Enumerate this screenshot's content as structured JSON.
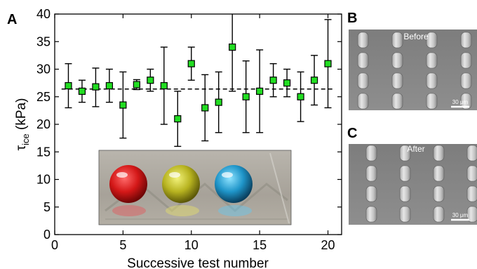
{
  "figure": {
    "panel_a_letter": "A",
    "panel_b_letter": "B",
    "panel_c_letter": "C",
    "panel_b_label": "Before",
    "panel_c_label": "After",
    "scalebar_b_label": "30 μm",
    "scalebar_c_label": "30 μm"
  },
  "chart_data": {
    "type": "scatter",
    "xlabel": "Successive test number",
    "ylabel_main": "τ",
    "ylabel_sub": "ice",
    "ylabel_unit": " (kPa)",
    "xlim": [
      0,
      21
    ],
    "ylim": [
      0,
      40
    ],
    "xticks": [
      0,
      5,
      10,
      15,
      20
    ],
    "yticks": [
      0,
      5,
      10,
      15,
      20,
      25,
      30,
      35,
      40
    ],
    "reference_line_y": 26.4,
    "marker_color": "#22dd22",
    "points": [
      {
        "x": 1,
        "y": 27.0,
        "err_low": 23.0,
        "err_high": 31.0
      },
      {
        "x": 2,
        "y": 26.0,
        "err_low": 24.0,
        "err_high": 28.0
      },
      {
        "x": 3,
        "y": 26.8,
        "err_low": 23.2,
        "err_high": 30.2
      },
      {
        "x": 4,
        "y": 27.0,
        "err_low": 24.0,
        "err_high": 30.0
      },
      {
        "x": 5,
        "y": 23.5,
        "err_low": 17.5,
        "err_high": 29.5
      },
      {
        "x": 6,
        "y": 27.2,
        "err_low": 26.3,
        "err_high": 28.1
      },
      {
        "x": 7,
        "y": 28.0,
        "err_low": 26.0,
        "err_high": 30.0
      },
      {
        "x": 8,
        "y": 27.0,
        "err_low": 20.0,
        "err_high": 34.0
      },
      {
        "x": 9,
        "y": 21.0,
        "err_low": 16.0,
        "err_high": 26.0
      },
      {
        "x": 10,
        "y": 31.0,
        "err_low": 28.0,
        "err_high": 34.0
      },
      {
        "x": 11,
        "y": 23.0,
        "err_low": 17.0,
        "err_high": 29.0
      },
      {
        "x": 12,
        "y": 24.0,
        "err_low": 18.5,
        "err_high": 29.5
      },
      {
        "x": 13,
        "y": 34.0,
        "err_low": 26.0,
        "err_high": 42.0
      },
      {
        "x": 14,
        "y": 25.0,
        "err_low": 18.5,
        "err_high": 31.5
      },
      {
        "x": 15,
        "y": 26.0,
        "err_low": 18.5,
        "err_high": 33.5
      },
      {
        "x": 16,
        "y": 28.0,
        "err_low": 25.0,
        "err_high": 31.0
      },
      {
        "x": 17,
        "y": 27.5,
        "err_low": 25.0,
        "err_high": 30.0
      },
      {
        "x": 18,
        "y": 25.0,
        "err_low": 20.5,
        "err_high": 29.5
      },
      {
        "x": 19,
        "y": 28.0,
        "err_low": 23.5,
        "err_high": 32.5
      },
      {
        "x": 20,
        "y": 31.0,
        "err_low": 23.0,
        "err_high": 39.0
      }
    ]
  }
}
